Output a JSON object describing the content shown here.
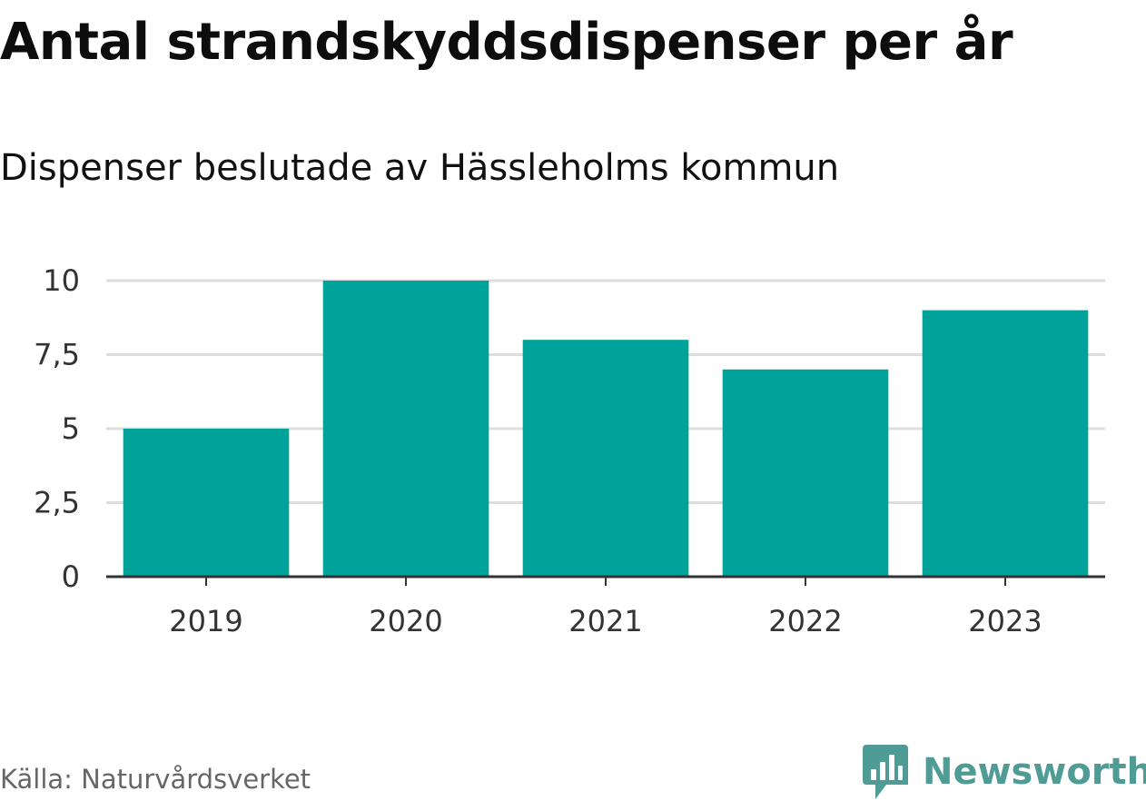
{
  "chart_data": {
    "type": "bar",
    "title": "Antal strandskyddsdispenser per år",
    "subtitle": "Dispenser beslutade av Hässleholms kommun",
    "categories": [
      "2019",
      "2020",
      "2021",
      "2022",
      "2023"
    ],
    "values": [
      5,
      10,
      8,
      7,
      9
    ],
    "ylim": [
      0,
      10
    ],
    "yticks": [
      0,
      2.5,
      5,
      7.5,
      10
    ],
    "ytick_labels": [
      "0",
      "2,5",
      "5",
      "7,5",
      "10"
    ],
    "xlabel": "",
    "ylabel": "",
    "grid": true,
    "legend": "none",
    "bar_color": "#00a39a",
    "gridline_color": "#dddddd",
    "axis_color": "#333333"
  },
  "source": "Källa: Naturvårdsverket",
  "brand": {
    "name": "Newsworthy",
    "icon": "newsworthy-logo-icon",
    "color": "#4f9b96"
  }
}
